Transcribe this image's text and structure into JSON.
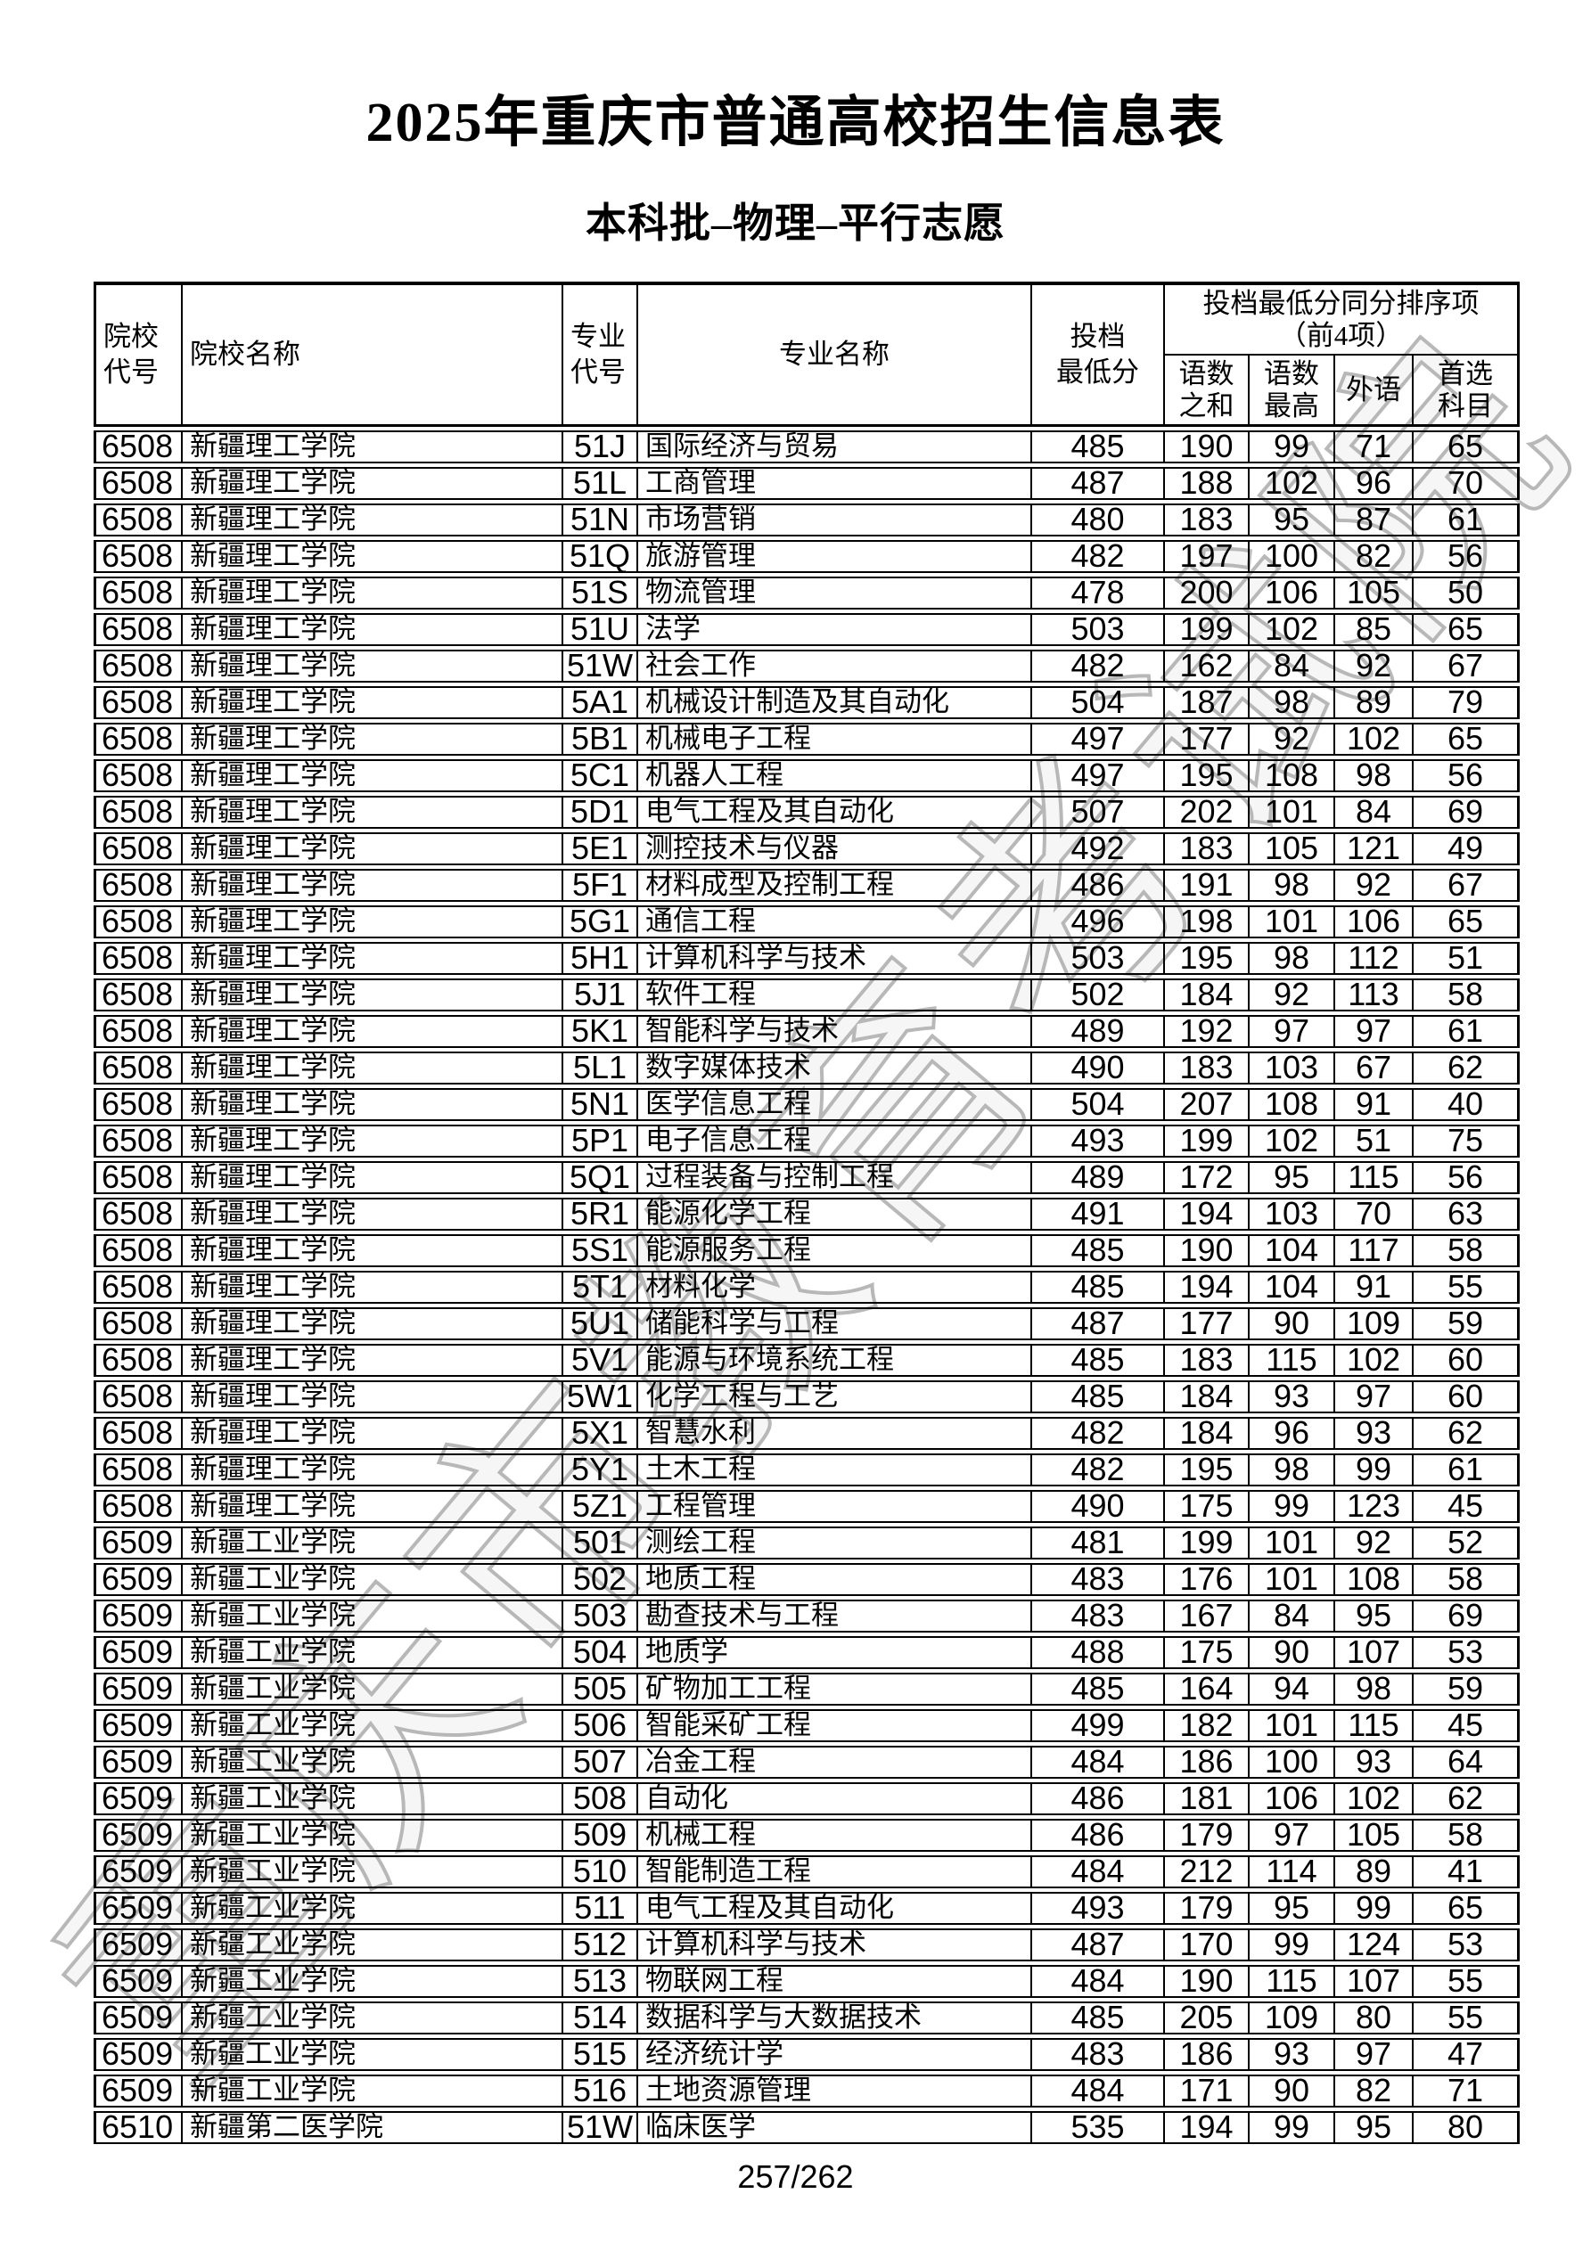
{
  "page": {
    "title": "2025年重庆市普通高校招生信息表",
    "subtitle": "本科批–物理–平行志愿",
    "watermark": "重庆市教育考试院",
    "page_number": "257/262"
  },
  "table": {
    "headers": {
      "college_code": [
        "院校",
        "代号"
      ],
      "college_name": "院校名称",
      "major_code": [
        "专业",
        "代号"
      ],
      "major_name": "专业名称",
      "min_score": [
        "投档",
        "最低分"
      ],
      "tiebreak_group": [
        "投档最低分同分排序项",
        "（前4项）"
      ],
      "tb_chn_math_sum": [
        "语数",
        "之和"
      ],
      "tb_chn_math_max": [
        "语数",
        "最高"
      ],
      "tb_foreign_lang": "外语",
      "tb_first_subject": [
        "首选",
        "科目"
      ]
    },
    "rows": [
      [
        "6508",
        "新疆理工学院",
        "51J",
        "国际经济与贸易",
        "485",
        "190",
        "99",
        "71",
        "65"
      ],
      [
        "6508",
        "新疆理工学院",
        "51L",
        "工商管理",
        "487",
        "188",
        "102",
        "96",
        "70"
      ],
      [
        "6508",
        "新疆理工学院",
        "51N",
        "市场营销",
        "480",
        "183",
        "95",
        "87",
        "61"
      ],
      [
        "6508",
        "新疆理工学院",
        "51Q",
        "旅游管理",
        "482",
        "197",
        "100",
        "82",
        "56"
      ],
      [
        "6508",
        "新疆理工学院",
        "51S",
        "物流管理",
        "478",
        "200",
        "106",
        "105",
        "50"
      ],
      [
        "6508",
        "新疆理工学院",
        "51U",
        "法学",
        "503",
        "199",
        "102",
        "85",
        "65"
      ],
      [
        "6508",
        "新疆理工学院",
        "51W",
        "社会工作",
        "482",
        "162",
        "84",
        "92",
        "67"
      ],
      [
        "6508",
        "新疆理工学院",
        "5A1",
        "机械设计制造及其自动化",
        "504",
        "187",
        "98",
        "89",
        "79"
      ],
      [
        "6508",
        "新疆理工学院",
        "5B1",
        "机械电子工程",
        "497",
        "177",
        "92",
        "102",
        "65"
      ],
      [
        "6508",
        "新疆理工学院",
        "5C1",
        "机器人工程",
        "497",
        "195",
        "108",
        "98",
        "56"
      ],
      [
        "6508",
        "新疆理工学院",
        "5D1",
        "电气工程及其自动化",
        "507",
        "202",
        "101",
        "84",
        "69"
      ],
      [
        "6508",
        "新疆理工学院",
        "5E1",
        "测控技术与仪器",
        "492",
        "183",
        "105",
        "121",
        "49"
      ],
      [
        "6508",
        "新疆理工学院",
        "5F1",
        "材料成型及控制工程",
        "486",
        "191",
        "98",
        "92",
        "67"
      ],
      [
        "6508",
        "新疆理工学院",
        "5G1",
        "通信工程",
        "496",
        "198",
        "101",
        "106",
        "65"
      ],
      [
        "6508",
        "新疆理工学院",
        "5H1",
        "计算机科学与技术",
        "503",
        "195",
        "98",
        "112",
        "51"
      ],
      [
        "6508",
        "新疆理工学院",
        "5J1",
        "软件工程",
        "502",
        "184",
        "92",
        "113",
        "58"
      ],
      [
        "6508",
        "新疆理工学院",
        "5K1",
        "智能科学与技术",
        "489",
        "192",
        "97",
        "97",
        "61"
      ],
      [
        "6508",
        "新疆理工学院",
        "5L1",
        "数字媒体技术",
        "490",
        "183",
        "103",
        "67",
        "62"
      ],
      [
        "6508",
        "新疆理工学院",
        "5N1",
        "医学信息工程",
        "504",
        "207",
        "108",
        "91",
        "40"
      ],
      [
        "6508",
        "新疆理工学院",
        "5P1",
        "电子信息工程",
        "493",
        "199",
        "102",
        "51",
        "75"
      ],
      [
        "6508",
        "新疆理工学院",
        "5Q1",
        "过程装备与控制工程",
        "489",
        "172",
        "95",
        "115",
        "56"
      ],
      [
        "6508",
        "新疆理工学院",
        "5R1",
        "能源化学工程",
        "491",
        "194",
        "103",
        "70",
        "63"
      ],
      [
        "6508",
        "新疆理工学院",
        "5S1",
        "能源服务工程",
        "485",
        "190",
        "104",
        "117",
        "58"
      ],
      [
        "6508",
        "新疆理工学院",
        "5T1",
        "材料化学",
        "485",
        "194",
        "104",
        "91",
        "55"
      ],
      [
        "6508",
        "新疆理工学院",
        "5U1",
        "储能科学与工程",
        "487",
        "177",
        "90",
        "109",
        "59"
      ],
      [
        "6508",
        "新疆理工学院",
        "5V1",
        "能源与环境系统工程",
        "485",
        "183",
        "115",
        "102",
        "60"
      ],
      [
        "6508",
        "新疆理工学院",
        "5W1",
        "化学工程与工艺",
        "485",
        "184",
        "93",
        "97",
        "60"
      ],
      [
        "6508",
        "新疆理工学院",
        "5X1",
        "智慧水利",
        "482",
        "184",
        "96",
        "93",
        "62"
      ],
      [
        "6508",
        "新疆理工学院",
        "5Y1",
        "土木工程",
        "482",
        "195",
        "98",
        "99",
        "61"
      ],
      [
        "6508",
        "新疆理工学院",
        "5Z1",
        "工程管理",
        "490",
        "175",
        "99",
        "123",
        "45"
      ],
      [
        "6509",
        "新疆工业学院",
        "501",
        "测绘工程",
        "481",
        "199",
        "101",
        "92",
        "52"
      ],
      [
        "6509",
        "新疆工业学院",
        "502",
        "地质工程",
        "483",
        "176",
        "101",
        "108",
        "58"
      ],
      [
        "6509",
        "新疆工业学院",
        "503",
        "勘查技术与工程",
        "483",
        "167",
        "84",
        "95",
        "69"
      ],
      [
        "6509",
        "新疆工业学院",
        "504",
        "地质学",
        "488",
        "175",
        "90",
        "107",
        "53"
      ],
      [
        "6509",
        "新疆工业学院",
        "505",
        "矿物加工工程",
        "485",
        "164",
        "94",
        "98",
        "59"
      ],
      [
        "6509",
        "新疆工业学院",
        "506",
        "智能采矿工程",
        "499",
        "182",
        "101",
        "115",
        "45"
      ],
      [
        "6509",
        "新疆工业学院",
        "507",
        "冶金工程",
        "484",
        "186",
        "100",
        "93",
        "64"
      ],
      [
        "6509",
        "新疆工业学院",
        "508",
        "自动化",
        "486",
        "181",
        "106",
        "102",
        "62"
      ],
      [
        "6509",
        "新疆工业学院",
        "509",
        "机械工程",
        "486",
        "179",
        "97",
        "105",
        "58"
      ],
      [
        "6509",
        "新疆工业学院",
        "510",
        "智能制造工程",
        "484",
        "212",
        "114",
        "89",
        "41"
      ],
      [
        "6509",
        "新疆工业学院",
        "511",
        "电气工程及其自动化",
        "493",
        "179",
        "95",
        "99",
        "65"
      ],
      [
        "6509",
        "新疆工业学院",
        "512",
        "计算机科学与技术",
        "487",
        "170",
        "99",
        "124",
        "53"
      ],
      [
        "6509",
        "新疆工业学院",
        "513",
        "物联网工程",
        "484",
        "190",
        "115",
        "107",
        "55"
      ],
      [
        "6509",
        "新疆工业学院",
        "514",
        "数据科学与大数据技术",
        "485",
        "205",
        "109",
        "80",
        "55"
      ],
      [
        "6509",
        "新疆工业学院",
        "515",
        "经济统计学",
        "483",
        "186",
        "93",
        "97",
        "47"
      ],
      [
        "6509",
        "新疆工业学院",
        "516",
        "土地资源管理",
        "484",
        "171",
        "90",
        "82",
        "71"
      ],
      [
        "6510",
        "新疆第二医学院",
        "51W",
        "临床医学",
        "535",
        "194",
        "99",
        "95",
        "80"
      ]
    ]
  }
}
